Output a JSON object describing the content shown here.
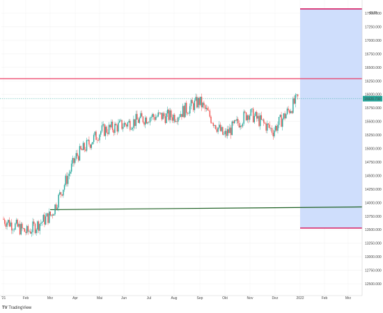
{
  "brand": "TradingView",
  "chart_data": {
    "type": "candlestick",
    "currency": "EUR",
    "ylim": [
      12500,
      17750
    ],
    "yticks": [
      17500,
      17250,
      17000,
      16750,
      16500,
      16250,
      16000,
      15750,
      15500,
      15250,
      15000,
      14750,
      14500,
      14250,
      14000,
      13750,
      13500,
      13250,
      13000,
      12750,
      12500
    ],
    "xticks": [
      "'21",
      "Feb",
      "Mrz",
      "Apr",
      "Mai",
      "Jun",
      "Jul",
      "Aug",
      "Sep",
      "Okt",
      "Nov",
      "Dez",
      "2022",
      "Feb",
      "Mrz"
    ],
    "last_price": 15920.73,
    "last_price_label": "15920.730",
    "resistance_level": 16290,
    "support_line": {
      "start": [
        "Mrz",
        13870
      ],
      "end": [
        "2022+Mrz",
        13920
      ]
    },
    "target_zone": {
      "from": "2022",
      "to": "Mrz",
      "top": 17580,
      "bottom": 13530
    },
    "monthly_closes": [
      {
        "month": "Jan 21",
        "value": 13450
      },
      {
        "month": "Feb 21",
        "value": 13780
      },
      {
        "month": "Mrz 21",
        "value": 14850
      },
      {
        "month": "Apr 21",
        "value": 15320
      },
      {
        "month": "Mai 21",
        "value": 15450
      },
      {
        "month": "Jun 21",
        "value": 15590
      },
      {
        "month": "Jul 21",
        "value": 15600
      },
      {
        "month": "Aug 21",
        "value": 15870
      },
      {
        "month": "Sep 21",
        "value": 15230
      },
      {
        "month": "Okt 21",
        "value": 15660
      },
      {
        "month": "Nov 21",
        "value": 15330
      },
      {
        "month": "Dez 21",
        "value": 15920
      }
    ],
    "colors": {
      "up": "#26a69a",
      "down": "#ef5350",
      "resistance": "#ec3b63",
      "support": "#1b5e20",
      "zone_fill": "#cfdefc",
      "zone_edge": "#d81b60",
      "price_line": "#26a69a",
      "price_label_bg": "#26a69a"
    }
  }
}
